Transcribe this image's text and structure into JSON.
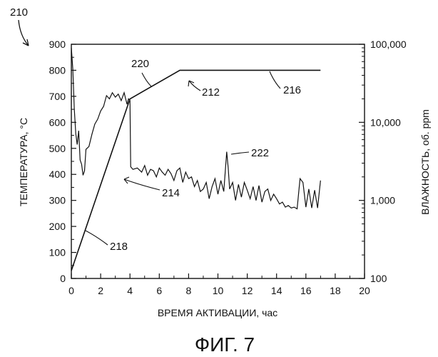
{
  "figure_number": "210",
  "caption": "ФИГ. 7",
  "chart_data": {
    "type": "line",
    "xlabel": "ВРЕМЯ АКТИВАЦИИ, час",
    "ylabel_left": "ТЕМПЕРАТУРА, °С",
    "ylabel_right": "ВЛАЖНОСТЬ, об. ppm",
    "xlim": [
      0,
      20
    ],
    "ylim_left": [
      0,
      900
    ],
    "ylim_right": [
      100,
      100000
    ],
    "right_axis_scale": "log",
    "x_ticks": [
      "0",
      "2",
      "4",
      "6",
      "8",
      "10",
      "12",
      "14",
      "16",
      "18",
      "20"
    ],
    "y_left_ticks": [
      "0",
      "100",
      "200",
      "300",
      "400",
      "500",
      "600",
      "700",
      "800",
      "900"
    ],
    "y_right_ticks": [
      "100",
      "1,000",
      "10,000",
      "100,000"
    ],
    "grid": false,
    "series": [
      {
        "id": "temperature-setpoint",
        "axis": "left",
        "x": [
          0,
          4,
          7.4,
          17
        ],
        "y": [
          30,
          690,
          800,
          800
        ]
      },
      {
        "id": "moisture",
        "axis": "right",
        "x": [
          0,
          0.1,
          0.2,
          0.3,
          0.4,
          0.5,
          0.6,
          0.7,
          0.8,
          0.9,
          1.0,
          1.2,
          1.4,
          1.6,
          1.8,
          2.0,
          2.2,
          2.4,
          2.6,
          2.8,
          3.0,
          3.2,
          3.4,
          3.6,
          3.8,
          3.9,
          4.0,
          4.05,
          4.2,
          4.5,
          4.8,
          5.0,
          5.2,
          5.4,
          5.6,
          5.8,
          6.0,
          6.2,
          6.4,
          6.6,
          6.8,
          7.0,
          7.2,
          7.4,
          7.6,
          7.8,
          8.0,
          8.2,
          8.4,
          8.6,
          8.8,
          9.0,
          9.2,
          9.4,
          9.6,
          9.8,
          10.0,
          10.2,
          10.4,
          10.6,
          10.7,
          10.8,
          11.0,
          11.2,
          11.4,
          11.6,
          11.8,
          12.0,
          12.2,
          12.4,
          12.6,
          12.8,
          13.0,
          13.2,
          13.4,
          13.6,
          13.8,
          14.0,
          14.2,
          14.4,
          14.6,
          14.8,
          15.0,
          15.2,
          15.4,
          15.6,
          15.8,
          16.0,
          16.2,
          16.4,
          16.6,
          16.8,
          17.0
        ],
        "y": [
          90000,
          48000,
          15000,
          7200,
          5200,
          7800,
          3300,
          2900,
          2100,
          2400,
          4500,
          4900,
          7000,
          9500,
          11000,
          14000,
          16000,
          22000,
          20000,
          24000,
          21000,
          23000,
          19000,
          24000,
          17000,
          20000,
          19000,
          2700,
          2500,
          2600,
          2300,
          2800,
          2100,
          2500,
          2400,
          2000,
          2600,
          2300,
          2100,
          2500,
          2200,
          1800,
          2400,
          2600,
          1700,
          2300,
          1900,
          2000,
          1500,
          1800,
          1300,
          1400,
          1700,
          1050,
          1500,
          1900,
          1200,
          1800,
          1300,
          4200,
          2600,
          1400,
          1700,
          1000,
          1600,
          1100,
          1700,
          1350,
          1050,
          1500,
          1000,
          1550,
          950,
          1300,
          1400,
          1000,
          1200,
          1050,
          900,
          950,
          820,
          860,
          800,
          820,
          780,
          1900,
          1700,
          820,
          1400,
          800,
          1350,
          800,
          1800
        ]
      }
    ],
    "reference_labels": [
      "210",
      "212",
      "214",
      "216",
      "218",
      "220",
      "222"
    ]
  }
}
